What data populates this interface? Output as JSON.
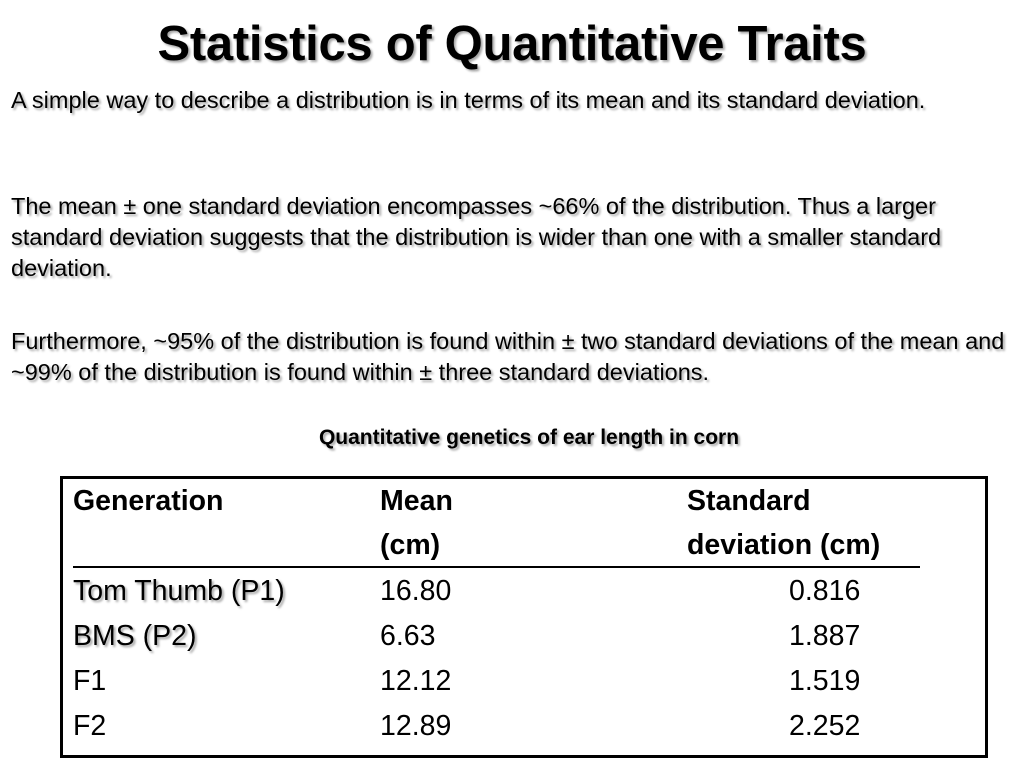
{
  "slide": {
    "title": "Statistics of Quantitative Traits",
    "paragraphs": [
      "A simple way to describe a distribution is in terms of its mean and its standard deviation.",
      "The mean ± one standard deviation encompasses ~66% of the distribution. Thus a larger standard deviation suggests that the distribution is wider than one with a smaller standard deviation.",
      "Furthermore, ~95% of the distribution is found within ± two standard deviations of the mean and ~99% of the distribution is found within ± three standard deviations."
    ],
    "table_caption": "Quantitative genetics of ear length in corn"
  },
  "table": {
    "headers": {
      "generation": "Generation",
      "mean_line1": "Mean",
      "mean_line2": "(cm)",
      "sd_line1": "Standard",
      "sd_line2": "deviation (cm)"
    },
    "rows": [
      {
        "generation": "Tom Thumb (P1)",
        "mean": "16.80",
        "sd": "0.816"
      },
      {
        "generation": "BMS (P2)",
        "mean": "6.63",
        "sd": "1.887"
      },
      {
        "generation": "F1",
        "mean": "12.12",
        "sd": "1.519"
      },
      {
        "generation": "F2",
        "mean": "12.89",
        "sd": "2.252"
      }
    ]
  }
}
